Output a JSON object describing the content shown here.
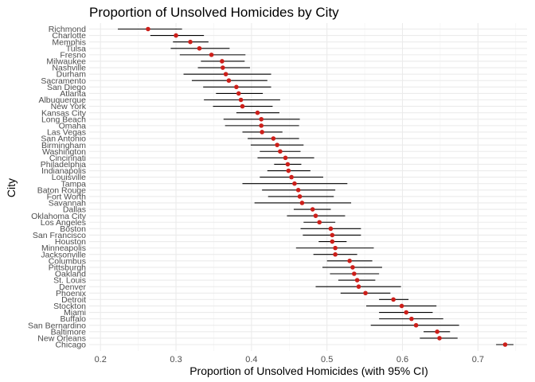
{
  "chart_data": {
    "type": "scatter",
    "title": "Proportion of Unsolved Homicides by City",
    "xlabel": "Proportion of Unsolved Homicides (with 95% CI)",
    "ylabel": "City",
    "xlim": [
      0.185,
      0.765
    ],
    "x_ticks": [
      0.2,
      0.3,
      0.4,
      0.5,
      0.6,
      0.7
    ],
    "x_tick_labels": [
      "0.2",
      "0.3",
      "0.4",
      "0.5",
      "0.6",
      "0.7"
    ],
    "grid": true,
    "point_color": "#cc1f1a",
    "errorbar_color": "#000000",
    "cities": [
      {
        "city": "Richmond",
        "estimate": 0.263,
        "lower": 0.223,
        "upper": 0.308
      },
      {
        "city": "Charlotte",
        "estimate": 0.3,
        "lower": 0.266,
        "upper": 0.337
      },
      {
        "city": "Memphis",
        "estimate": 0.319,
        "lower": 0.296,
        "upper": 0.343
      },
      {
        "city": "Tulsa",
        "estimate": 0.331,
        "lower": 0.293,
        "upper": 0.371
      },
      {
        "city": "Fresno",
        "estimate": 0.347,
        "lower": 0.305,
        "upper": 0.392
      },
      {
        "city": "Milwaukee",
        "estimate": 0.361,
        "lower": 0.333,
        "upper": 0.391
      },
      {
        "city": "Nashville",
        "estimate": 0.362,
        "lower": 0.329,
        "upper": 0.398
      },
      {
        "city": "Durham",
        "estimate": 0.366,
        "lower": 0.31,
        "upper": 0.426
      },
      {
        "city": "Sacramento",
        "estimate": 0.37,
        "lower": 0.321,
        "upper": 0.421
      },
      {
        "city": "San Diego",
        "estimate": 0.38,
        "lower": 0.336,
        "upper": 0.426
      },
      {
        "city": "Atlanta",
        "estimate": 0.383,
        "lower": 0.353,
        "upper": 0.415
      },
      {
        "city": "Albuquerque",
        "estimate": 0.386,
        "lower": 0.337,
        "upper": 0.438
      },
      {
        "city": "New York",
        "estimate": 0.388,
        "lower": 0.349,
        "upper": 0.428
      },
      {
        "city": "Kansas City",
        "estimate": 0.408,
        "lower": 0.38,
        "upper": 0.437
      },
      {
        "city": "Long Beach",
        "estimate": 0.413,
        "lower": 0.363,
        "upper": 0.464
      },
      {
        "city": "Omaha",
        "estimate": 0.413,
        "lower": 0.365,
        "upper": 0.463
      },
      {
        "city": "Las Vegas",
        "estimate": 0.414,
        "lower": 0.388,
        "upper": 0.441
      },
      {
        "city": "San Antonio",
        "estimate": 0.429,
        "lower": 0.395,
        "upper": 0.463
      },
      {
        "city": "Birmingham",
        "estimate": 0.434,
        "lower": 0.399,
        "upper": 0.469
      },
      {
        "city": "Washington",
        "estimate": 0.438,
        "lower": 0.411,
        "upper": 0.465
      },
      {
        "city": "Cincinnati",
        "estimate": 0.445,
        "lower": 0.408,
        "upper": 0.483
      },
      {
        "city": "Philadelphia",
        "estimate": 0.448,
        "lower": 0.43,
        "upper": 0.466
      },
      {
        "city": "Indianapolis",
        "estimate": 0.449,
        "lower": 0.421,
        "upper": 0.478
      },
      {
        "city": "Louisville",
        "estimate": 0.453,
        "lower": 0.411,
        "upper": 0.495
      },
      {
        "city": "Tampa",
        "estimate": 0.457,
        "lower": 0.388,
        "upper": 0.527
      },
      {
        "city": "Baton Rouge",
        "estimate": 0.462,
        "lower": 0.414,
        "upper": 0.511
      },
      {
        "city": "Fort Worth",
        "estimate": 0.464,
        "lower": 0.422,
        "upper": 0.509
      },
      {
        "city": "Savannah",
        "estimate": 0.467,
        "lower": 0.404,
        "upper": 0.532
      },
      {
        "city": "Dallas",
        "estimate": 0.481,
        "lower": 0.456,
        "upper": 0.505
      },
      {
        "city": "Oklahoma City",
        "estimate": 0.485,
        "lower": 0.447,
        "upper": 0.524
      },
      {
        "city": "Los Angeles",
        "estimate": 0.49,
        "lower": 0.469,
        "upper": 0.511
      },
      {
        "city": "Boston",
        "estimate": 0.505,
        "lower": 0.465,
        "upper": 0.545
      },
      {
        "city": "San Francisco",
        "estimate": 0.507,
        "lower": 0.468,
        "upper": 0.545
      },
      {
        "city": "Houston",
        "estimate": 0.507,
        "lower": 0.489,
        "upper": 0.526
      },
      {
        "city": "Minneapolis",
        "estimate": 0.511,
        "lower": 0.459,
        "upper": 0.562
      },
      {
        "city": "Jacksonville",
        "estimate": 0.511,
        "lower": 0.482,
        "upper": 0.54
      },
      {
        "city": "Columbus",
        "estimate": 0.53,
        "lower": 0.5,
        "upper": 0.56
      },
      {
        "city": "Pittsburgh",
        "estimate": 0.534,
        "lower": 0.494,
        "upper": 0.573
      },
      {
        "city": "Oakland",
        "estimate": 0.536,
        "lower": 0.504,
        "upper": 0.569
      },
      {
        "city": "St. Louis",
        "estimate": 0.54,
        "lower": 0.515,
        "upper": 0.564
      },
      {
        "city": "Denver",
        "estimate": 0.542,
        "lower": 0.485,
        "upper": 0.598
      },
      {
        "city": "Phoenix",
        "estimate": 0.551,
        "lower": 0.518,
        "upper": 0.584
      },
      {
        "city": "Detroit",
        "estimate": 0.588,
        "lower": 0.569,
        "upper": 0.608
      },
      {
        "city": "Stockton",
        "estimate": 0.599,
        "lower": 0.552,
        "upper": 0.645
      },
      {
        "city": "Miami",
        "estimate": 0.605,
        "lower": 0.569,
        "upper": 0.64
      },
      {
        "city": "Buffalo",
        "estimate": 0.612,
        "lower": 0.569,
        "upper": 0.654
      },
      {
        "city": "San Bernardino",
        "estimate": 0.618,
        "lower": 0.558,
        "upper": 0.675
      },
      {
        "city": "Baltimore",
        "estimate": 0.646,
        "lower": 0.628,
        "upper": 0.663
      },
      {
        "city": "New Orleans",
        "estimate": 0.649,
        "lower": 0.623,
        "upper": 0.673
      },
      {
        "city": "Chicago",
        "estimate": 0.736,
        "lower": 0.724,
        "upper": 0.747
      }
    ]
  }
}
